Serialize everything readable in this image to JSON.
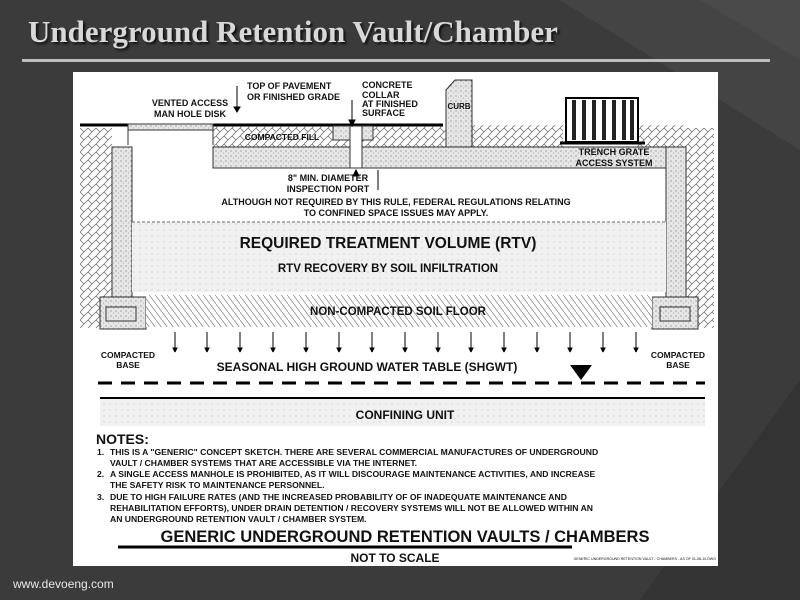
{
  "slide": {
    "title": "Underground Retention Vault/Chamber",
    "footer": "www.devoeng.com"
  },
  "diagram": {
    "labels": {
      "vented_access": [
        "VENTED ACCESS",
        "MAN HOLE DISK"
      ],
      "top_of_pavement": [
        "TOP OF PAVEMENT",
        "OR FINISHED GRADE"
      ],
      "concrete_collar": [
        "CONCRETE",
        "COLLAR",
        "AT FINISHED",
        "SURFACE"
      ],
      "curb": "CURB",
      "trench_grate": [
        "TRENCH GRATE",
        "ACCESS SYSTEM"
      ],
      "compacted_fill": "COMPACTED FILL",
      "inspection_port": [
        "8\" MIN. DIAMETER",
        "INSPECTION PORT"
      ],
      "federal_note": [
        "ALTHOUGH NOT REQUIRED BY THIS RULE, FEDERAL REGULATIONS RELATING",
        "TO CONFINED SPACE ISSUES MAY APPLY."
      ],
      "rtv": "REQUIRED TREATMENT VOLUME (RTV)",
      "rtv_recovery": "RTV RECOVERY BY SOIL INFILTRATION",
      "soil_floor": "NON-COMPACTED SOIL FLOOR",
      "compacted_base": [
        "COMPACTED",
        "BASE"
      ],
      "shgwt": "SEASONAL HIGH GROUND WATER TABLE (SHGWT)",
      "confining_unit": "CONFINING UNIT"
    },
    "notes_heading": "NOTES:",
    "notes": [
      [
        "1.",
        "THIS IS A \"GENERIC\" CONCEPT SKETCH. THERE ARE SEVERAL COMMERCIAL MANUFACTURES OF UNDERGROUND",
        "VAULT / CHAMBER SYSTEMS THAT ARE ACCESSIBLE VIA THE INTERNET."
      ],
      [
        "2.",
        "A SINGLE ACCESS MANHOLE IS PROHIBITED, AS IT WILL DISCOURAGE MAINTENANCE ACTIVITIES, AND INCREASE",
        "THE SAFETY RISK TO MAINTENANCE PERSONNEL."
      ],
      [
        "3.",
        "DUE TO HIGH FAILURE RATES (AND THE INCREASED PROBABILITY OF OF INADEQUATE MAINTENANCE AND",
        "REHABILITATION EFFORTS), UNDER DRAIN DETENTION / RECOVERY SYSTEMS WILL NOT BE ALLOWED WITHIN AN",
        "AN UNDERGROUND RETENTION VAULT / CHAMBER SYSTEM."
      ]
    ],
    "drawing_title": "GENERIC UNDERGROUND RETENTION VAULTS / CHAMBERS",
    "scale_note": "NOT TO SCALE",
    "file_note": "GENERIC UNDERGROUND RETENTION VAULT - CHAMBERS - AS OF 01-08-10.DWG"
  }
}
